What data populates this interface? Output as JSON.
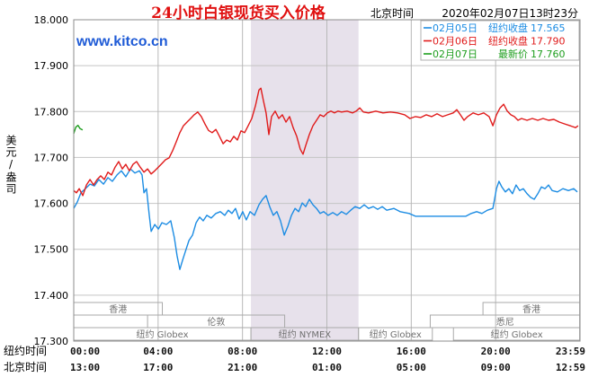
{
  "header": {
    "time_label": "北京时间",
    "datetime": "2020年02月07日13时23分"
  },
  "watermark": "www.kitco.cn",
  "chart_data": {
    "type": "line",
    "title": "24小时白银现货买入价格",
    "ylabel": "美元/盎司",
    "ylim": [
      17.3,
      18.0
    ],
    "yticks": [
      "18.000",
      "17.900",
      "17.800",
      "17.700",
      "17.600",
      "17.500",
      "17.400",
      "17.300"
    ],
    "xlim": [
      0,
      24
    ],
    "x_row_labels": [
      "纽约时间",
      "北京时间"
    ],
    "x_ticks": [
      {
        "hour": 0,
        "labels": [
          "00:00",
          "13:00"
        ]
      },
      {
        "hour": 4,
        "labels": [
          "04:00",
          "17:00"
        ]
      },
      {
        "hour": 8,
        "labels": [
          "08:00",
          "21:00"
        ]
      },
      {
        "hour": 12,
        "labels": [
          "12:00",
          "01:00"
        ]
      },
      {
        "hour": 16,
        "labels": [
          "16:00",
          "05:00"
        ]
      },
      {
        "hour": 20,
        "labels": [
          "20:00",
          "09:00"
        ]
      },
      {
        "hour": 23.98,
        "labels": [
          "23:59",
          "12:59"
        ]
      }
    ],
    "grid": true,
    "legend": "top-right",
    "shaded_range": [
      8.4,
      13.5
    ],
    "shade_color": "#e7e1eb",
    "sessions": [
      [
        {
          "label": "香港",
          "start": 0,
          "end": 4.2
        },
        {
          "label": "香港",
          "start": 19.4,
          "end": 24
        }
      ],
      [
        {
          "label": "伦敦",
          "start": 3.5,
          "end": 10.0
        },
        {
          "label": "悉尼",
          "start": 16.9,
          "end": 24
        }
      ],
      [
        {
          "label": "纽约 Globex",
          "start": 0,
          "end": 8.4
        },
        {
          "label": "纽约 NYMEX",
          "start": 8.4,
          "end": 13.5
        },
        {
          "label": "纽约 Globex",
          "start": 13.5,
          "end": 17.0
        },
        {
          "label": "纽约 Globex",
          "start": 18.0,
          "end": 24
        }
      ]
    ],
    "series": [
      {
        "name": "02月05日",
        "note": "纽约收盘",
        "value": "17.565",
        "color": "#1c8ce3",
        "points": [
          [
            0,
            17.589
          ],
          [
            0.17,
            17.603
          ],
          [
            0.34,
            17.623
          ],
          [
            0.55,
            17.632
          ],
          [
            0.77,
            17.642
          ],
          [
            0.98,
            17.638
          ],
          [
            1.19,
            17.652
          ],
          [
            1.41,
            17.642
          ],
          [
            1.62,
            17.656
          ],
          [
            1.83,
            17.648
          ],
          [
            2.05,
            17.662
          ],
          [
            2.26,
            17.671
          ],
          [
            2.47,
            17.658
          ],
          [
            2.69,
            17.675
          ],
          [
            2.9,
            17.666
          ],
          [
            3.11,
            17.671
          ],
          [
            3.24,
            17.662
          ],
          [
            3.33,
            17.623
          ],
          [
            3.45,
            17.632
          ],
          [
            3.58,
            17.574
          ],
          [
            3.67,
            17.539
          ],
          [
            3.84,
            17.554
          ],
          [
            4.01,
            17.544
          ],
          [
            4.18,
            17.558
          ],
          [
            4.39,
            17.554
          ],
          [
            4.6,
            17.562
          ],
          [
            4.77,
            17.525
          ],
          [
            4.9,
            17.486
          ],
          [
            5.03,
            17.456
          ],
          [
            5.16,
            17.476
          ],
          [
            5.29,
            17.495
          ],
          [
            5.46,
            17.519
          ],
          [
            5.63,
            17.531
          ],
          [
            5.8,
            17.558
          ],
          [
            5.97,
            17.57
          ],
          [
            6.14,
            17.562
          ],
          [
            6.31,
            17.574
          ],
          [
            6.52,
            17.568
          ],
          [
            6.74,
            17.578
          ],
          [
            6.95,
            17.582
          ],
          [
            7.16,
            17.574
          ],
          [
            7.33,
            17.585
          ],
          [
            7.5,
            17.578
          ],
          [
            7.67,
            17.589
          ],
          [
            7.84,
            17.566
          ],
          [
            8.01,
            17.582
          ],
          [
            8.18,
            17.564
          ],
          [
            8.36,
            17.582
          ],
          [
            8.57,
            17.574
          ],
          [
            8.78,
            17.597
          ],
          [
            8.95,
            17.609
          ],
          [
            9.12,
            17.617
          ],
          [
            9.29,
            17.593
          ],
          [
            9.46,
            17.574
          ],
          [
            9.63,
            17.582
          ],
          [
            9.8,
            17.562
          ],
          [
            9.98,
            17.531
          ],
          [
            10.15,
            17.55
          ],
          [
            10.32,
            17.574
          ],
          [
            10.49,
            17.589
          ],
          [
            10.66,
            17.582
          ],
          [
            10.83,
            17.601
          ],
          [
            11.0,
            17.593
          ],
          [
            11.17,
            17.609
          ],
          [
            11.34,
            17.597
          ],
          [
            11.51,
            17.589
          ],
          [
            11.68,
            17.578
          ],
          [
            11.85,
            17.582
          ],
          [
            12.06,
            17.574
          ],
          [
            12.28,
            17.58
          ],
          [
            12.49,
            17.574
          ],
          [
            12.7,
            17.582
          ],
          [
            12.92,
            17.576
          ],
          [
            13.13,
            17.585
          ],
          [
            13.34,
            17.593
          ],
          [
            13.56,
            17.589
          ],
          [
            13.77,
            17.597
          ],
          [
            13.98,
            17.589
          ],
          [
            14.2,
            17.593
          ],
          [
            14.41,
            17.587
          ],
          [
            14.62,
            17.593
          ],
          [
            14.84,
            17.585
          ],
          [
            15.18,
            17.589
          ],
          [
            15.47,
            17.582
          ],
          [
            15.9,
            17.578
          ],
          [
            16.2,
            17.572
          ],
          [
            16.75,
            17.572
          ],
          [
            17.39,
            17.572
          ],
          [
            18.03,
            17.572
          ],
          [
            18.59,
            17.572
          ],
          [
            18.84,
            17.578
          ],
          [
            19.1,
            17.582
          ],
          [
            19.35,
            17.578
          ],
          [
            19.61,
            17.585
          ],
          [
            19.87,
            17.589
          ],
          [
            20.04,
            17.632
          ],
          [
            20.16,
            17.648
          ],
          [
            20.29,
            17.636
          ],
          [
            20.46,
            17.625
          ],
          [
            20.63,
            17.632
          ],
          [
            20.8,
            17.621
          ],
          [
            20.97,
            17.64
          ],
          [
            21.14,
            17.628
          ],
          [
            21.31,
            17.632
          ],
          [
            21.49,
            17.621
          ],
          [
            21.66,
            17.613
          ],
          [
            21.83,
            17.609
          ],
          [
            22.0,
            17.621
          ],
          [
            22.17,
            17.636
          ],
          [
            22.34,
            17.632
          ],
          [
            22.51,
            17.64
          ],
          [
            22.68,
            17.628
          ],
          [
            22.93,
            17.625
          ],
          [
            23.19,
            17.632
          ],
          [
            23.45,
            17.628
          ],
          [
            23.7,
            17.632
          ],
          [
            23.87,
            17.625
          ]
        ]
      },
      {
        "name": "02月06日",
        "note": "纽约收盘",
        "value": "17.790",
        "color": "#e01b1b",
        "points": [
          [
            0,
            17.628
          ],
          [
            0.13,
            17.623
          ],
          [
            0.26,
            17.632
          ],
          [
            0.43,
            17.617
          ],
          [
            0.6,
            17.64
          ],
          [
            0.77,
            17.652
          ],
          [
            0.94,
            17.64
          ],
          [
            1.11,
            17.652
          ],
          [
            1.28,
            17.66
          ],
          [
            1.45,
            17.652
          ],
          [
            1.62,
            17.668
          ],
          [
            1.79,
            17.662
          ],
          [
            1.96,
            17.679
          ],
          [
            2.13,
            17.691
          ],
          [
            2.3,
            17.675
          ],
          [
            2.47,
            17.685
          ],
          [
            2.64,
            17.671
          ],
          [
            2.81,
            17.685
          ],
          [
            2.98,
            17.691
          ],
          [
            3.15,
            17.679
          ],
          [
            3.33,
            17.668
          ],
          [
            3.5,
            17.675
          ],
          [
            3.67,
            17.664
          ],
          [
            3.84,
            17.671
          ],
          [
            4.01,
            17.679
          ],
          [
            4.18,
            17.687
          ],
          [
            4.35,
            17.695
          ],
          [
            4.52,
            17.699
          ],
          [
            4.69,
            17.715
          ],
          [
            4.86,
            17.734
          ],
          [
            5.03,
            17.754
          ],
          [
            5.2,
            17.769
          ],
          [
            5.37,
            17.777
          ],
          [
            5.54,
            17.785
          ],
          [
            5.71,
            17.793
          ],
          [
            5.88,
            17.799
          ],
          [
            6.05,
            17.789
          ],
          [
            6.22,
            17.773
          ],
          [
            6.39,
            17.759
          ],
          [
            6.56,
            17.754
          ],
          [
            6.74,
            17.761
          ],
          [
            6.91,
            17.746
          ],
          [
            7.08,
            17.73
          ],
          [
            7.25,
            17.738
          ],
          [
            7.42,
            17.734
          ],
          [
            7.59,
            17.746
          ],
          [
            7.76,
            17.738
          ],
          [
            7.93,
            17.758
          ],
          [
            8.1,
            17.754
          ],
          [
            8.27,
            17.769
          ],
          [
            8.44,
            17.785
          ],
          [
            8.61,
            17.812
          ],
          [
            8.78,
            17.847
          ],
          [
            8.87,
            17.851
          ],
          [
            8.99,
            17.824
          ],
          [
            9.12,
            17.797
          ],
          [
            9.25,
            17.75
          ],
          [
            9.38,
            17.789
          ],
          [
            9.55,
            17.801
          ],
          [
            9.72,
            17.785
          ],
          [
            9.89,
            17.793
          ],
          [
            10.06,
            17.777
          ],
          [
            10.23,
            17.789
          ],
          [
            10.4,
            17.765
          ],
          [
            10.57,
            17.746
          ],
          [
            10.74,
            17.718
          ],
          [
            10.87,
            17.707
          ],
          [
            11.0,
            17.726
          ],
          [
            11.17,
            17.75
          ],
          [
            11.34,
            17.769
          ],
          [
            11.51,
            17.781
          ],
          [
            11.68,
            17.793
          ],
          [
            11.85,
            17.789
          ],
          [
            12.02,
            17.797
          ],
          [
            12.19,
            17.801
          ],
          [
            12.36,
            17.797
          ],
          [
            12.53,
            17.801
          ],
          [
            12.7,
            17.799
          ],
          [
            12.96,
            17.801
          ],
          [
            13.22,
            17.797
          ],
          [
            13.39,
            17.801
          ],
          [
            13.56,
            17.808
          ],
          [
            13.73,
            17.799
          ],
          [
            13.98,
            17.797
          ],
          [
            14.32,
            17.801
          ],
          [
            14.66,
            17.797
          ],
          [
            15.01,
            17.799
          ],
          [
            15.35,
            17.797
          ],
          [
            15.69,
            17.793
          ],
          [
            15.94,
            17.785
          ],
          [
            16.2,
            17.789
          ],
          [
            16.45,
            17.787
          ],
          [
            16.71,
            17.793
          ],
          [
            16.97,
            17.789
          ],
          [
            17.22,
            17.795
          ],
          [
            17.48,
            17.789
          ],
          [
            17.73,
            17.793
          ],
          [
            17.99,
            17.797
          ],
          [
            18.16,
            17.804
          ],
          [
            18.33,
            17.793
          ],
          [
            18.5,
            17.781
          ],
          [
            18.67,
            17.789
          ],
          [
            18.93,
            17.797
          ],
          [
            19.18,
            17.793
          ],
          [
            19.44,
            17.797
          ],
          [
            19.69,
            17.789
          ],
          [
            19.87,
            17.769
          ],
          [
            20.04,
            17.793
          ],
          [
            20.21,
            17.808
          ],
          [
            20.38,
            17.816
          ],
          [
            20.55,
            17.801
          ],
          [
            20.72,
            17.793
          ],
          [
            20.89,
            17.789
          ],
          [
            21.06,
            17.781
          ],
          [
            21.23,
            17.785
          ],
          [
            21.49,
            17.781
          ],
          [
            21.74,
            17.785
          ],
          [
            22.0,
            17.781
          ],
          [
            22.25,
            17.785
          ],
          [
            22.51,
            17.781
          ],
          [
            22.76,
            17.783
          ],
          [
            23.02,
            17.777
          ],
          [
            23.28,
            17.773
          ],
          [
            23.53,
            17.769
          ],
          [
            23.79,
            17.765
          ],
          [
            23.91,
            17.769
          ]
        ]
      },
      {
        "name": "02月07日",
        "note": "最新价",
        "value": "17.760",
        "color": "#1f9e1f",
        "points": [
          [
            0,
            17.752
          ],
          [
            0.1,
            17.766
          ],
          [
            0.2,
            17.77
          ],
          [
            0.3,
            17.763
          ],
          [
            0.42,
            17.76
          ]
        ]
      }
    ]
  }
}
